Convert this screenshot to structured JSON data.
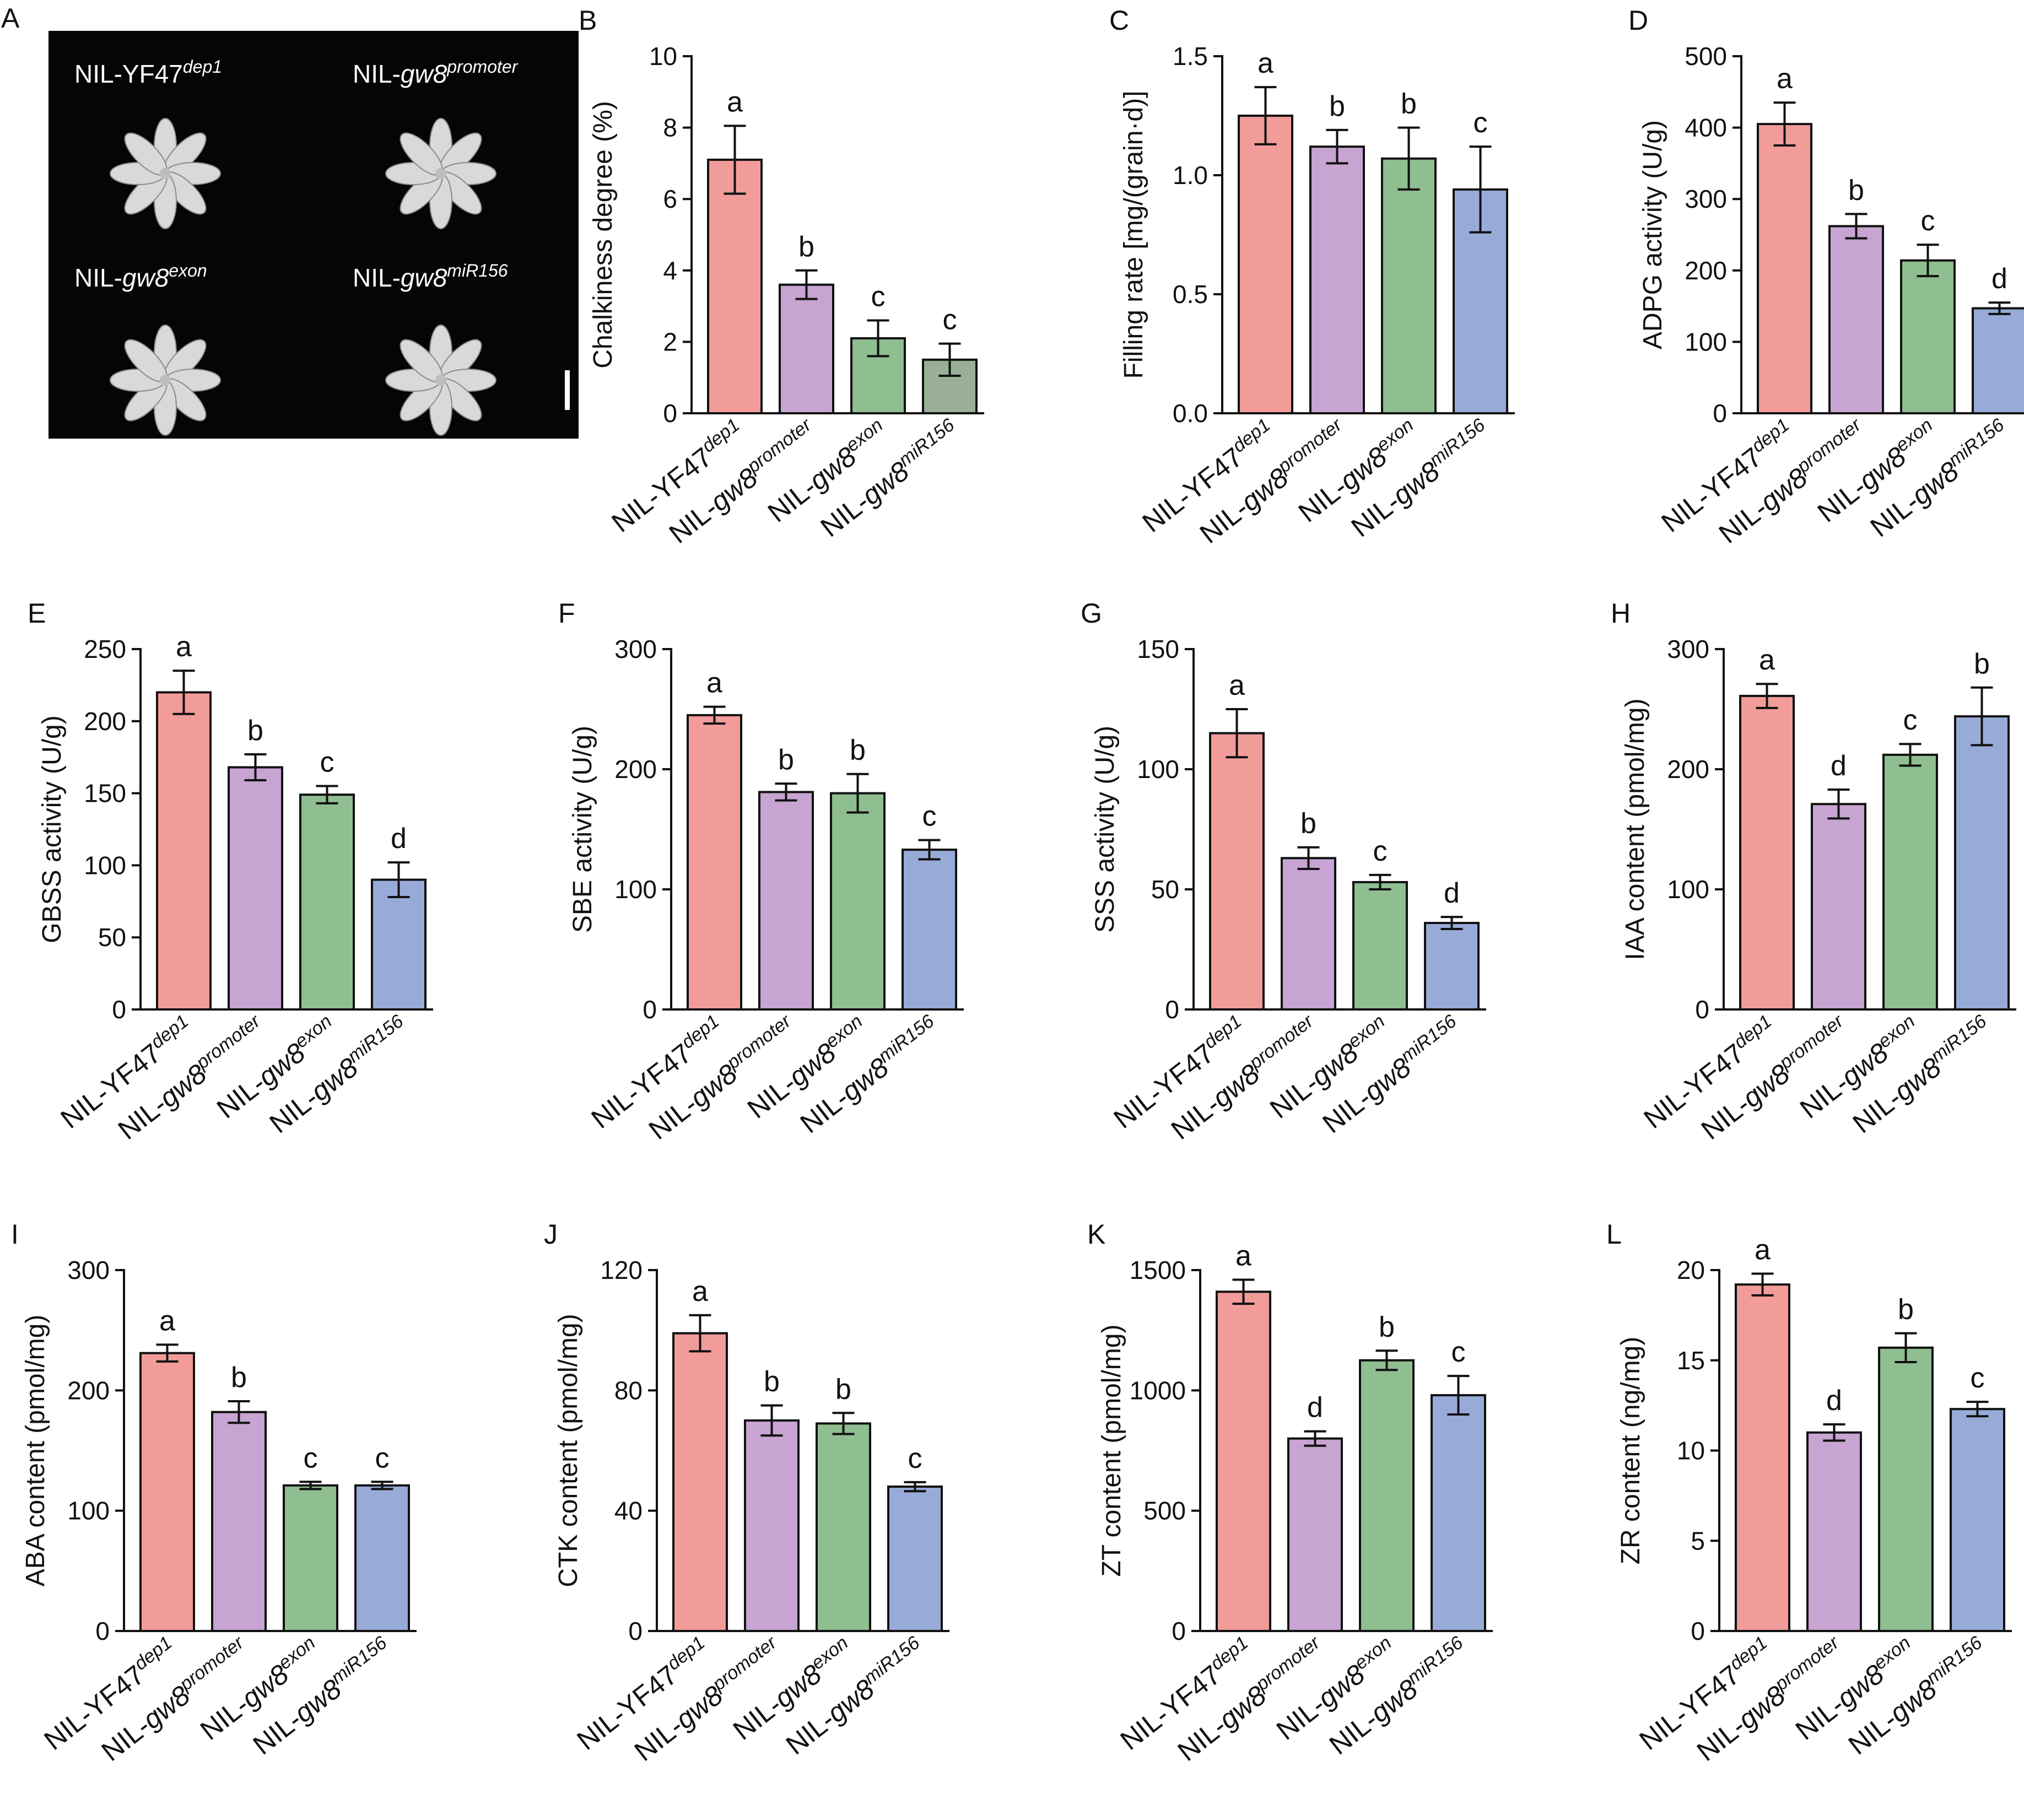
{
  "panel_a": {
    "letter": "A",
    "labels": [
      {
        "base": "NIL-YF47",
        "italic": "",
        "sup": "dep1"
      },
      {
        "base": "NIL-",
        "italic": "gw8",
        "sup": "promoter"
      },
      {
        "base": "NIL-",
        "italic": "gw8",
        "sup": "exon"
      },
      {
        "base": "NIL-",
        "italic": "gw8",
        "sup": "miR156"
      }
    ]
  },
  "categories": [
    {
      "base": "NIL-YF47",
      "italic": "",
      "sup": "dep1"
    },
    {
      "base": "NIL-",
      "italic": "gw8",
      "sup": "promoter"
    },
    {
      "base": "NIL-",
      "italic": "gw8",
      "sup": "exon"
    },
    {
      "base": "NIL-",
      "italic": "gw8",
      "sup": "miR156"
    }
  ],
  "colors": {
    "bars": [
      "#f29c9a",
      "#c7a4d2",
      "#8fbe90",
      "#98abd8"
    ],
    "bars_panel_b": [
      "#f29c9a",
      "#c7a4d2",
      "#8fbe90",
      "#99b097"
    ],
    "axis": "#111111",
    "photo_background": "#050505",
    "grain": "#d9d9d9"
  },
  "chart_data": [
    {
      "letter": "B",
      "type": "bar",
      "ylabel": "Chalkiness degree (%)",
      "ylim": [
        0,
        10
      ],
      "yticks": [
        "0",
        "2",
        "4",
        "6",
        "8",
        "10"
      ],
      "values": [
        7.1,
        3.6,
        2.1,
        1.5
      ],
      "errors": [
        0.95,
        0.4,
        0.5,
        0.45
      ],
      "letters": [
        "a",
        "b",
        "c",
        "c"
      ]
    },
    {
      "letter": "C",
      "type": "bar",
      "ylabel": "Filling rate [mg/(grain·d)]",
      "ylim": [
        0,
        1.5
      ],
      "yticks": [
        "0.0",
        "0.5",
        "1.0",
        "1.5"
      ],
      "values": [
        1.25,
        1.12,
        1.07,
        0.94
      ],
      "errors": [
        0.12,
        0.07,
        0.13,
        0.18
      ],
      "letters": [
        "a",
        "b",
        "b",
        "c"
      ]
    },
    {
      "letter": "D",
      "type": "bar",
      "ylabel": "ADPG activity (U/g)",
      "ylim": [
        0,
        500
      ],
      "yticks": [
        "0",
        "100",
        "200",
        "300",
        "400",
        "500"
      ],
      "values": [
        405,
        262,
        214,
        147
      ],
      "errors": [
        30,
        17,
        22,
        8
      ],
      "letters": [
        "a",
        "b",
        "c",
        "d"
      ]
    },
    {
      "letter": "E",
      "type": "bar",
      "ylabel": "GBSS activity (U/g)",
      "ylim": [
        0,
        250
      ],
      "yticks": [
        "0",
        "50",
        "100",
        "150",
        "200",
        "250"
      ],
      "values": [
        220,
        168,
        149,
        90
      ],
      "errors": [
        15,
        9,
        6,
        12
      ],
      "letters": [
        "a",
        "b",
        "c",
        "d"
      ]
    },
    {
      "letter": "F",
      "type": "bar",
      "ylabel": "SBE activity (U/g)",
      "ylim": [
        0,
        300
      ],
      "yticks": [
        "0",
        "100",
        "200",
        "300"
      ],
      "values": [
        245,
        181,
        180,
        133
      ],
      "errors": [
        7,
        7,
        16,
        8
      ],
      "letters": [
        "a",
        "b",
        "b",
        "c"
      ]
    },
    {
      "letter": "G",
      "type": "bar",
      "ylabel": "SSS activity (U/g)",
      "ylim": [
        0,
        150
      ],
      "yticks": [
        "0",
        "50",
        "100",
        "150"
      ],
      "values": [
        115,
        63,
        53,
        36
      ],
      "errors": [
        10,
        4.5,
        3,
        2.5
      ],
      "letters": [
        "a",
        "b",
        "c",
        "d"
      ]
    },
    {
      "letter": "H",
      "type": "bar",
      "ylabel": "IAA content (pmol/mg)",
      "ylim": [
        0,
        300
      ],
      "yticks": [
        "0",
        "100",
        "200",
        "300"
      ],
      "values": [
        261,
        171,
        212,
        244
      ],
      "errors": [
        10,
        12,
        9,
        24
      ],
      "letters": [
        "a",
        "d",
        "c",
        "b"
      ]
    },
    {
      "letter": "I",
      "type": "bar",
      "ylabel": "ABA content (pmol/mg)",
      "ylim": [
        0,
        300
      ],
      "yticks": [
        "0",
        "100",
        "200",
        "300"
      ],
      "values": [
        231,
        182,
        121,
        121
      ],
      "errors": [
        7,
        9,
        3,
        3
      ],
      "letters": [
        "a",
        "b",
        "c",
        "c"
      ]
    },
    {
      "letter": "J",
      "type": "bar",
      "ylabel": "CTK content (pmol/mg)",
      "ylim": [
        0,
        120
      ],
      "yticks": [
        "0",
        "40",
        "80",
        "120"
      ],
      "values": [
        99,
        70,
        69,
        48
      ],
      "errors": [
        6,
        5,
        3.5,
        1.5
      ],
      "letters": [
        "a",
        "b",
        "b",
        "c"
      ]
    },
    {
      "letter": "K",
      "type": "bar",
      "ylabel": "ZT content (pmol/mg)",
      "ylim": [
        0,
        1500
      ],
      "yticks": [
        "0",
        "500",
        "1000",
        "1500"
      ],
      "values": [
        1410,
        800,
        1125,
        980
      ],
      "errors": [
        50,
        30,
        40,
        80
      ],
      "letters": [
        "a",
        "d",
        "b",
        "c"
      ]
    },
    {
      "letter": "L",
      "type": "bar",
      "ylabel": "ZR content (ng/mg)",
      "ylim": [
        0,
        20
      ],
      "yticks": [
        "0",
        "5",
        "10",
        "15",
        "20"
      ],
      "values": [
        19.2,
        11.0,
        15.7,
        12.3
      ],
      "errors": [
        0.6,
        0.45,
        0.8,
        0.4
      ],
      "letters": [
        "a",
        "d",
        "b",
        "c"
      ]
    }
  ]
}
